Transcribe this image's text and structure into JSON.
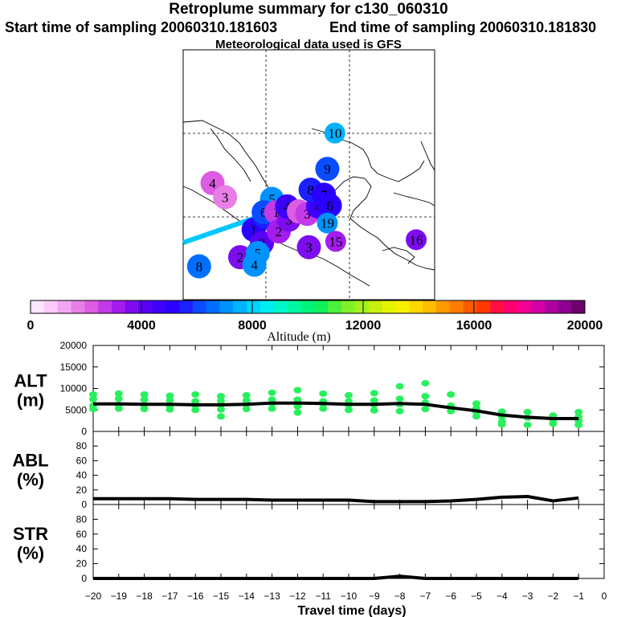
{
  "header": {
    "title": "Retroplume summary for c130_060310",
    "start": "Start time of sampling 20060310.181603",
    "end": "End time of sampling 20060310.181830",
    "met": "Meteorological data used is GFS"
  },
  "map": {
    "markers": [
      {
        "day": "1",
        "altitude_m": 5200,
        "lon": -104.6,
        "lat": 11.4
      },
      {
        "day": "2",
        "altitude_m": 4000,
        "lon": -103.6,
        "lat": 9.8
      },
      {
        "day": "3",
        "altitude_m": 5800,
        "lon": -103.2,
        "lat": 12.9
      },
      {
        "day": "5",
        "altitude_m": 7000,
        "lon": -102.4,
        "lat": 15.1
      },
      {
        "day": "6",
        "altitude_m": 6300,
        "lon": -103.4,
        "lat": 13.5
      },
      {
        "day": "1",
        "altitude_m": 2600,
        "lon": -101.9,
        "lat": 13.5
      },
      {
        "day": "2",
        "altitude_m": 3000,
        "lon": -101.6,
        "lat": 11.2
      },
      {
        "day": "3",
        "altitude_m": 3800,
        "lon": -100.4,
        "lat": 12.6
      },
      {
        "day": "4",
        "altitude_m": 4800,
        "lon": -100.6,
        "lat": 14.2
      },
      {
        "day": "1",
        "altitude_m": 2400,
        "lon": -99.2,
        "lat": 13.6
      },
      {
        "day": "3",
        "altitude_m": 2500,
        "lon": -98.2,
        "lat": 13.3
      },
      {
        "day": "4",
        "altitude_m": 4400,
        "lon": -96.9,
        "lat": 14.2
      },
      {
        "day": "8",
        "altitude_m": 5600,
        "lon": -97.8,
        "lat": 16.2
      },
      {
        "day": "7",
        "altitude_m": 5000,
        "lon": -96.2,
        "lat": 15.6
      },
      {
        "day": "6",
        "altitude_m": 5000,
        "lon": -95.5,
        "lat": 14.3
      },
      {
        "day": "9",
        "altitude_m": 6300,
        "lon": -95.8,
        "lat": 18.7
      },
      {
        "day": "10",
        "altitude_m": 7800,
        "lon": -94.9,
        "lat": 23.0
      },
      {
        "day": "19",
        "altitude_m": 7200,
        "lon": -95.8,
        "lat": 12.2
      },
      {
        "day": "15",
        "altitude_m": 3000,
        "lon": -94.8,
        "lat": 10.0
      },
      {
        "day": "16",
        "altitude_m": 3500,
        "lon": -85.2,
        "lat": 10.2
      },
      {
        "day": "3",
        "altitude_m": 3900,
        "lon": -98.0,
        "lat": 9.3
      },
      {
        "day": "2",
        "altitude_m": 3500,
        "lon": -106.2,
        "lat": 8.1
      },
      {
        "day": "5",
        "altitude_m": 7300,
        "lon": -104.1,
        "lat": 8.6
      },
      {
        "day": "4",
        "altitude_m": 7200,
        "lon": -104.5,
        "lat": 7.2
      },
      {
        "day": "4",
        "altitude_m": 2000,
        "lon": -109.5,
        "lat": 17.0
      },
      {
        "day": "3",
        "altitude_m": 1800,
        "lon": -108.0,
        "lat": 15.3
      },
      {
        "day": "8",
        "altitude_m": 6800,
        "lon": -111.1,
        "lat": 7.0
      }
    ]
  },
  "colorbar": {
    "ticks": [
      "0",
      "4000",
      "8000",
      "12000",
      "16000",
      "20000"
    ],
    "label": "Altitude  (m)",
    "colors": [
      "#ffe6ff",
      "#fccafc",
      "#f2a6f2",
      "#e77fe7",
      "#dc5ce2",
      "#c43ae8",
      "#a41cee",
      "#7d0cf0",
      "#5a00f5",
      "#3c00f8",
      "#2a00ff",
      "#1a20ff",
      "#0a4cff",
      "#006fff",
      "#0092ff",
      "#00b2ff",
      "#00d4ff",
      "#00ecf0",
      "#00f8c8",
      "#00f8a0",
      "#00f47c",
      "#10f058",
      "#4cf03a",
      "#80f028",
      "#a8f01c",
      "#c8f010",
      "#e4f400",
      "#f8f000",
      "#ffd800",
      "#ffbc00",
      "#ff9a00",
      "#ff7c00",
      "#ff5a00",
      "#ff3a00",
      "#ff1040",
      "#ff0070",
      "#f40094",
      "#d400a8",
      "#b000a0",
      "#900090",
      "#6e006e"
    ]
  },
  "chart_data": [
    {
      "type": "line",
      "id": "alt",
      "ylabel": "ALT\n(m)",
      "ylabel_line1": "ALT",
      "ylabel_line2": "(m)",
      "yticks": [
        "0",
        "5000",
        "10000",
        "15000",
        "20000"
      ],
      "ylim": [
        0,
        20000
      ],
      "xlim": [
        -20,
        0
      ],
      "x": [
        -20,
        -19,
        -18,
        -17,
        -16,
        -15,
        -14,
        -13,
        -12,
        -11,
        -10,
        -9,
        -8,
        -7,
        -6,
        -5,
        -4,
        -3,
        -2,
        -1
      ],
      "series": [
        {
          "name": "median",
          "values": [
            6400,
            6400,
            6300,
            6300,
            6200,
            6200,
            6300,
            6600,
            6600,
            6500,
            6300,
            6300,
            6500,
            6300,
            5500,
            4800,
            3800,
            3300,
            3000,
            3000
          ]
        },
        {
          "name": "members",
          "points": [
            [
              -20,
              7500
            ],
            [
              -20,
              6000
            ],
            [
              -20,
              5200
            ],
            [
              -20,
              8600
            ],
            [
              -19,
              6200
            ],
            [
              -19,
              7600
            ],
            [
              -19,
              5300
            ],
            [
              -19,
              8800
            ],
            [
              -18,
              6100
            ],
            [
              -18,
              7400
            ],
            [
              -18,
              5200
            ],
            [
              -18,
              8600
            ],
            [
              -17,
              6000
            ],
            [
              -17,
              7200
            ],
            [
              -17,
              5100
            ],
            [
              -17,
              8300
            ],
            [
              -16,
              6100
            ],
            [
              -16,
              7000
            ],
            [
              -16,
              5000
            ],
            [
              -16,
              8600
            ],
            [
              -15,
              6200
            ],
            [
              -15,
              7100
            ],
            [
              -15,
              5100
            ],
            [
              -15,
              3500
            ],
            [
              -15,
              8200
            ],
            [
              -14,
              6300
            ],
            [
              -14,
              7200
            ],
            [
              -14,
              5200
            ],
            [
              -14,
              8400
            ],
            [
              -13,
              6500
            ],
            [
              -13,
              7400
            ],
            [
              -13,
              5300
            ],
            [
              -13,
              9000
            ],
            [
              -12,
              6700
            ],
            [
              -12,
              7400
            ],
            [
              -12,
              5800
            ],
            [
              -12,
              4400
            ],
            [
              -12,
              9600
            ],
            [
              -11,
              6400
            ],
            [
              -11,
              7000
            ],
            [
              -11,
              5300
            ],
            [
              -11,
              8800
            ],
            [
              -10,
              6200
            ],
            [
              -10,
              7000
            ],
            [
              -10,
              5000
            ],
            [
              -10,
              8400
            ],
            [
              -9,
              6200
            ],
            [
              -9,
              7200
            ],
            [
              -9,
              4900
            ],
            [
              -9,
              8900
            ],
            [
              -8,
              6300
            ],
            [
              -8,
              7600
            ],
            [
              -8,
              4700
            ],
            [
              -8,
              10500
            ],
            [
              -7,
              6700
            ],
            [
              -7,
              8200
            ],
            [
              -7,
              5200
            ],
            [
              -7,
              11200
            ],
            [
              -6,
              5600
            ],
            [
              -6,
              6000
            ],
            [
              -6,
              4700
            ],
            [
              -6,
              8600
            ],
            [
              -5,
              5400
            ],
            [
              -5,
              4500
            ],
            [
              -5,
              3500
            ],
            [
              -5,
              6500
            ],
            [
              -4,
              4600
            ],
            [
              -4,
              3400
            ],
            [
              -4,
              2200
            ],
            [
              -4,
              1600
            ],
            [
              -3,
              4500
            ],
            [
              -3,
              3200
            ],
            [
              -3,
              1500
            ],
            [
              -2,
              3700
            ],
            [
              -2,
              2800
            ],
            [
              -2,
              1800
            ],
            [
              -1,
              4500
            ],
            [
              -1,
              3400
            ],
            [
              -1,
              2500
            ],
            [
              -1,
              1500
            ]
          ]
        }
      ]
    },
    {
      "type": "line",
      "id": "abl",
      "ylabel_line1": "ABL",
      "ylabel_line2": "(%)",
      "yticks": [
        "0",
        "20",
        "40",
        "60",
        "80"
      ],
      "ylim": [
        0,
        100
      ],
      "xlim": [
        -20,
        0
      ],
      "x": [
        -20,
        -19,
        -18,
        -17,
        -16,
        -15,
        -14,
        -13,
        -12,
        -11,
        -10,
        -9,
        -8,
        -7,
        -6,
        -5,
        -4,
        -3,
        -2,
        -1
      ],
      "series": [
        {
          "name": "ABL fraction",
          "values": [
            8,
            8,
            8,
            8,
            7,
            7,
            7,
            6,
            6,
            6,
            6,
            4,
            4,
            4,
            5,
            7,
            10,
            11,
            5,
            9
          ]
        }
      ]
    },
    {
      "type": "line",
      "id": "str",
      "ylabel_line1": "STR",
      "ylabel_line2": "(%)",
      "yticks": [
        "0",
        "20",
        "40",
        "60",
        "80"
      ],
      "ylim": [
        0,
        100
      ],
      "xlim": [
        -20,
        0
      ],
      "xticks": [
        "−20",
        "−19",
        "−18",
        "−17",
        "−16",
        "−15",
        "−14",
        "−13",
        "−12",
        "−11",
        "−10",
        "−9",
        "−8",
        "−7",
        "−6",
        "−5",
        "−4",
        "−3",
        "−2",
        "−1",
        "0"
      ],
      "xlabel": "Travel time (days)",
      "x": [
        -20,
        -19,
        -18,
        -17,
        -16,
        -15,
        -14,
        -13,
        -12,
        -11,
        -10,
        -9,
        -8,
        -7,
        -6,
        -5,
        -4,
        -3,
        -2,
        -1
      ],
      "series": [
        {
          "name": "STR fraction",
          "values": [
            0,
            0,
            0,
            0,
            0,
            0,
            0,
            0,
            0,
            0,
            0,
            0,
            3,
            0,
            0,
            0,
            0,
            0,
            0,
            0
          ]
        }
      ]
    }
  ]
}
